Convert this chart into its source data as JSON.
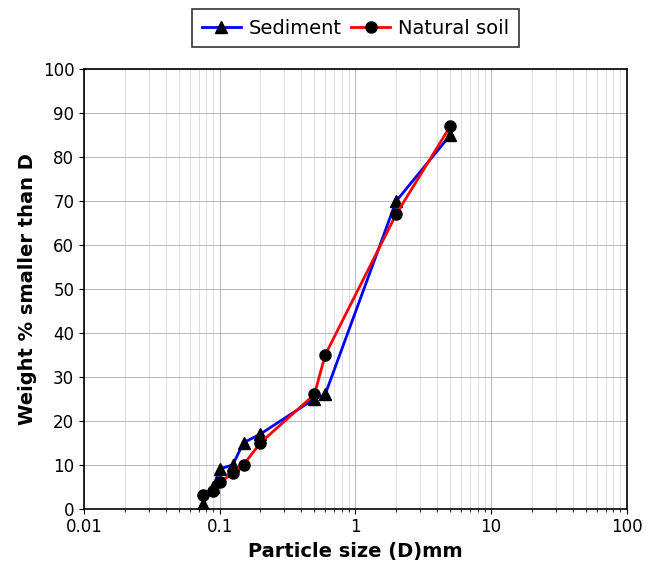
{
  "sediment_x": [
    0.075,
    0.09,
    0.1,
    0.125,
    0.15,
    0.2,
    0.5,
    0.6,
    2.0,
    5.0
  ],
  "sediment_y": [
    1,
    5,
    9,
    10,
    15,
    17,
    25,
    26,
    70,
    85
  ],
  "natural_x": [
    0.075,
    0.09,
    0.1,
    0.125,
    0.15,
    0.2,
    0.5,
    0.6,
    2.0,
    5.0
  ],
  "natural_y": [
    3,
    4,
    6,
    8,
    10,
    15,
    26,
    35,
    67,
    87
  ],
  "sediment_color": "#0000ff",
  "natural_color": "#ff0000",
  "marker_color": "#000000",
  "bg_color": "#ffffff",
  "grid_color": "#999999",
  "xlabel": "Particle size (D)mm",
  "ylabel": "Weight % smaller than D",
  "ylim": [
    0,
    100
  ],
  "xlim": [
    0.01,
    100
  ],
  "yticks": [
    0,
    10,
    20,
    30,
    40,
    50,
    60,
    70,
    80,
    90,
    100
  ],
  "xtick_labels": [
    "0.01",
    "0.1",
    "1",
    "10",
    "100"
  ],
  "xtick_vals": [
    0.01,
    0.1,
    1,
    10,
    100
  ],
  "legend_sediment": "Sediment",
  "legend_natural": "Natural soil",
  "axis_fontsize": 14,
  "tick_fontsize": 12,
  "legend_fontsize": 14
}
